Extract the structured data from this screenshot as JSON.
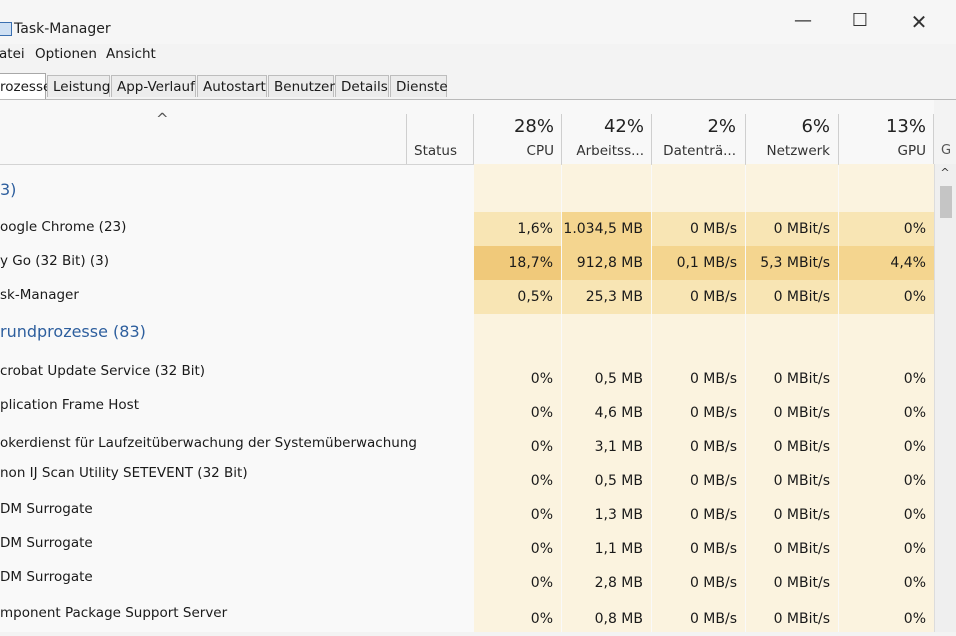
{
  "window": {
    "title": "Task-Manager",
    "minimize_glyph": "—",
    "maximize_glyph": "☐",
    "close_glyph": "✕"
  },
  "menu": [
    "atei",
    "Optionen",
    "Ansicht"
  ],
  "tabs": [
    {
      "label": "rozesse",
      "active": true
    },
    {
      "label": "Leistung"
    },
    {
      "label": "App-Verlauf"
    },
    {
      "label": "Autostart"
    },
    {
      "label": "Benutzer"
    },
    {
      "label": "Details"
    },
    {
      "label": "Dienste"
    }
  ],
  "columns": {
    "sort_glyph": "^",
    "status": {
      "label": "Status"
    },
    "cpu": {
      "percent": "28%",
      "label": "CPU"
    },
    "memory": {
      "percent": "42%",
      "label": "Arbeitss..."
    },
    "disk": {
      "percent": "2%",
      "label": "Datenträ..."
    },
    "network": {
      "percent": "6%",
      "label": "Netzwerk"
    },
    "gpu": {
      "percent": "13%",
      "label": "GPU"
    },
    "gpu_engine_stub": "G"
  },
  "groups": {
    "apps": "3)",
    "background": "rundprozesse (83)"
  },
  "apps": [
    {
      "name": "oogle Chrome (23)",
      "cpu": "1,6%",
      "mem": "1.034,5 MB",
      "disk": "0 MB/s",
      "net": "0 MBit/s",
      "gpu": "0%"
    },
    {
      "name": "y Go (32 Bit) (3)",
      "cpu": "18,7%",
      "mem": "912,8 MB",
      "disk": "0,1 MB/s",
      "net": "5,3 MBit/s",
      "gpu": "4,4%"
    },
    {
      "name": "sk-Manager",
      "cpu": "0,5%",
      "mem": "25,3 MB",
      "disk": "0 MB/s",
      "net": "0 MBit/s",
      "gpu": "0%"
    }
  ],
  "background": [
    {
      "name": "crobat Update Service (32 Bit)",
      "cpu": "0%",
      "mem": "0,5 MB",
      "disk": "0 MB/s",
      "net": "0 MBit/s",
      "gpu": "0%"
    },
    {
      "name": "plication Frame Host",
      "cpu": "0%",
      "mem": "4,6 MB",
      "disk": "0 MB/s",
      "net": "0 MBit/s",
      "gpu": "0%"
    },
    {
      "name": "okerdienst für Laufzeitüberwachung der Systemüberwachung",
      "cpu": "0%",
      "mem": "3,1 MB",
      "disk": "0 MB/s",
      "net": "0 MBit/s",
      "gpu": "0%"
    },
    {
      "name": "non IJ Scan Utility SETEVENT (32 Bit)",
      "cpu": "0%",
      "mem": "0,5 MB",
      "disk": "0 MB/s",
      "net": "0 MBit/s",
      "gpu": "0%"
    },
    {
      "name": "DM Surrogate",
      "cpu": "0%",
      "mem": "1,3 MB",
      "disk": "0 MB/s",
      "net": "0 MBit/s",
      "gpu": "0%"
    },
    {
      "name": "DM Surrogate",
      "cpu": "0%",
      "mem": "1,1 MB",
      "disk": "0 MB/s",
      "net": "0 MBit/s",
      "gpu": "0%"
    },
    {
      "name": "DM Surrogate",
      "cpu": "0%",
      "mem": "2,8 MB",
      "disk": "0 MB/s",
      "net": "0 MBit/s",
      "gpu": "0%"
    },
    {
      "name": "mponent Package Support Server",
      "cpu": "0%",
      "mem": "0,8 MB",
      "disk": "0 MB/s",
      "net": "0 MBit/s",
      "gpu": "0%"
    }
  ],
  "scrollbar": {
    "up_glyph": "^"
  }
}
